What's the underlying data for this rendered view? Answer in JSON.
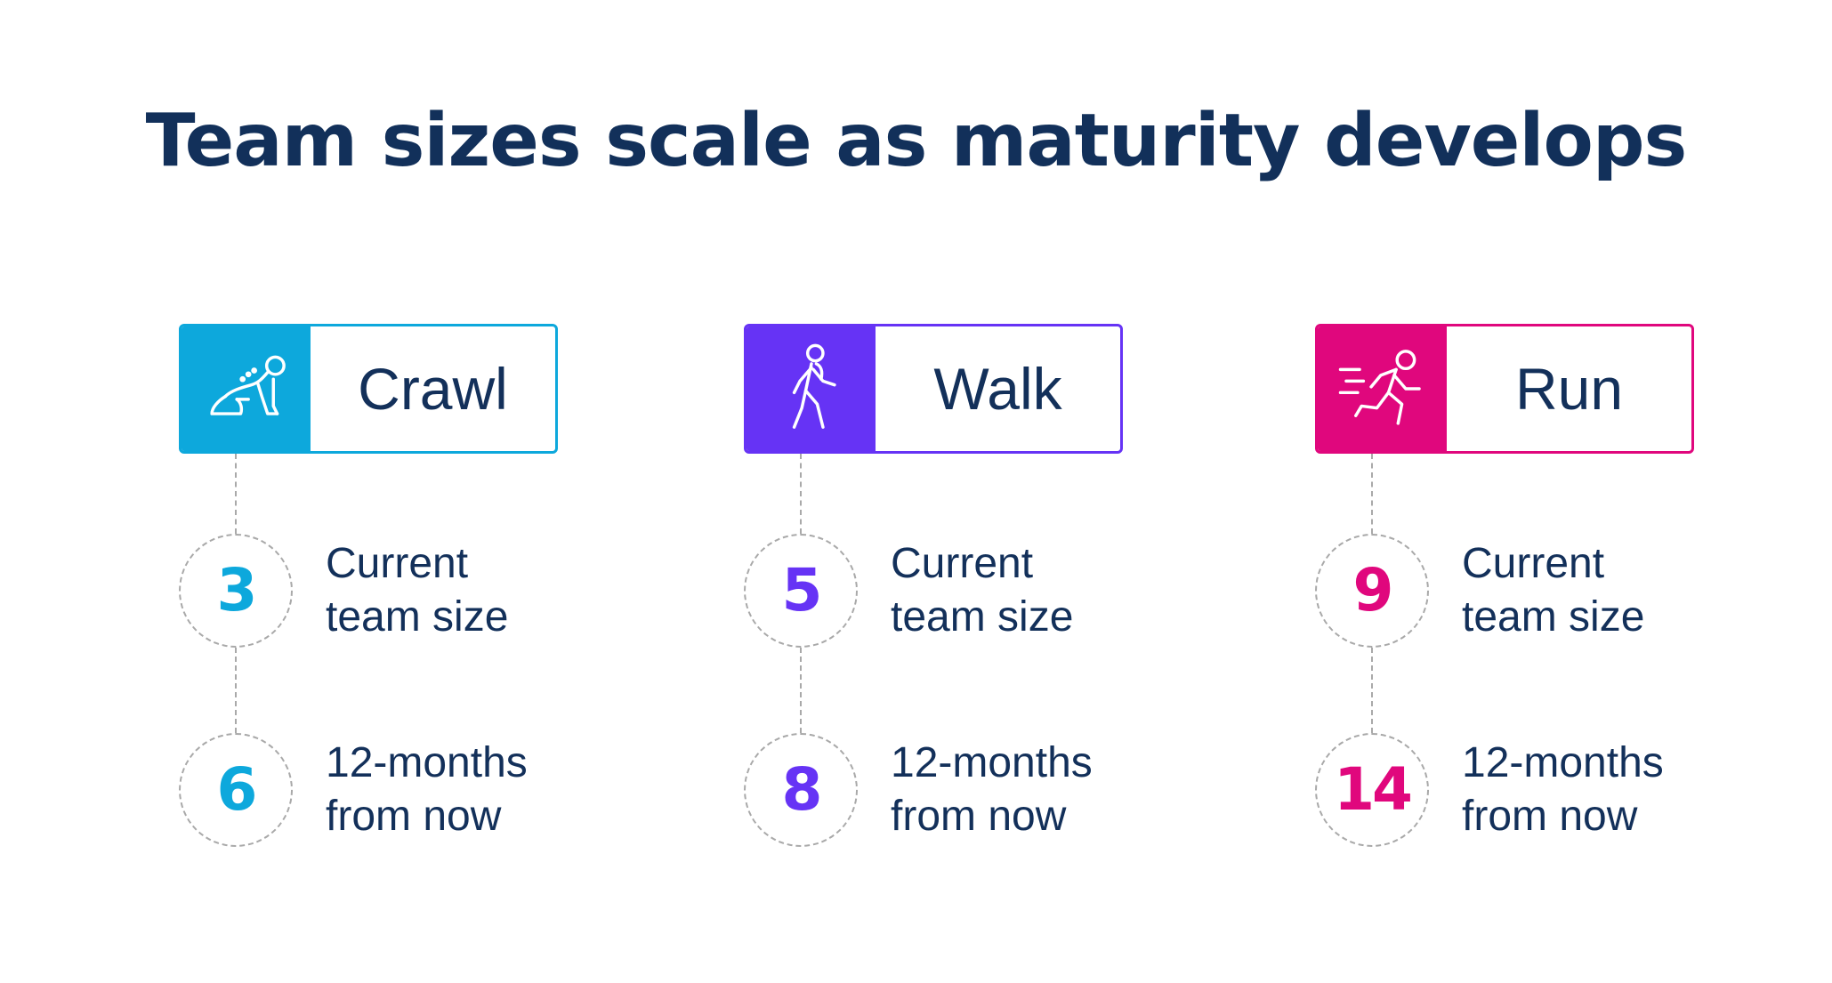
{
  "title": "Team sizes scale as maturity develops",
  "chart_data": {
    "type": "table",
    "title": "Team sizes scale as maturity develops",
    "categories": [
      "Crawl",
      "Walk",
      "Run"
    ],
    "series": [
      {
        "name": "Current team size",
        "values": [
          3,
          5,
          9
        ]
      },
      {
        "name": "12-months from now",
        "values": [
          6,
          8,
          14
        ]
      }
    ]
  },
  "stages": [
    {
      "label": "Crawl",
      "icon": "crawling-person-icon",
      "color": "#0da8dc",
      "current": {
        "value": "3",
        "line1": "Current",
        "line2": "team size"
      },
      "future": {
        "value": "6",
        "line1": "12-months",
        "line2": "from now"
      }
    },
    {
      "label": "Walk",
      "icon": "walking-person-icon",
      "color": "#6633f5",
      "current": {
        "value": "5",
        "line1": "Current",
        "line2": "team size"
      },
      "future": {
        "value": "8",
        "line1": "12-months",
        "line2": "from now"
      }
    },
    {
      "label": "Run",
      "icon": "running-person-icon",
      "color": "#e0077d",
      "current": {
        "value": "9",
        "line1": "Current",
        "line2": "team size"
      },
      "future": {
        "value": "14",
        "line1": "12-months",
        "line2": "from now"
      }
    }
  ]
}
